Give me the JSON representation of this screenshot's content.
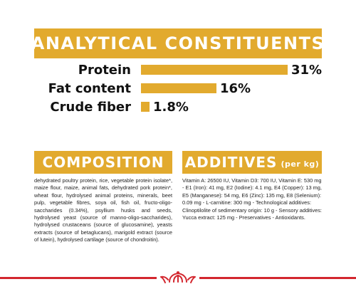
{
  "analytics": {
    "title": "ANALYTICAL CONSTITUENTS",
    "rows": [
      {
        "label": "Protein",
        "value": "31%",
        "percent": 31
      },
      {
        "label": "Fat content",
        "value": "16%",
        "percent": 16
      },
      {
        "label": "Crude fiber",
        "value": "1.8%",
        "percent": 1.8
      }
    ]
  },
  "composition": {
    "title": "COMPOSITION",
    "text": "dehydrated poultry protein, rice, vegetable protein isolate*, maize flour, maize, animal fats, dehydrated pork protein*, wheat flour, hydrolysed animal proteins, minerals, beet pulp, vegetable fibres, soya oil, fish oil, fructo-oligo-saccharides (0.34%), psyllium husks and seeds, hydrolysed yeast (source of manno-oligo-saccharides), hydrolysed crustaceans (source of glucosamine), yeasts extracts (source of betaglucans), marigold extract (source of lutein), hydrolysed cartilage (source of chondroitin)."
  },
  "additives": {
    "title": "ADDITIVES",
    "title_suffix": "(per kg)",
    "text": "Vitamin A: 26500 IU, Vitamin D3: 700 IU, Vitamin E: 530 mg - E1 (Iron): 41 mg, E2 (Iodine): 4.1 mg, E4 (Copper): 13 mg, E5 (Manganese): 54 mg, E6 (Zinc): 135 mg, E8 (Selenium): 0.09 mg - L-carnitine: 300 mg - Technological additives: Clinoptilolite of sedimentary origin: 10 g - Sensory additives: Yucca extract: 125 mg - Preservatives - Antioxidants."
  },
  "colors": {
    "accent": "#e2aa2e",
    "footer_line": "#d3262e"
  },
  "icons": {
    "logo": "crown-icon"
  }
}
